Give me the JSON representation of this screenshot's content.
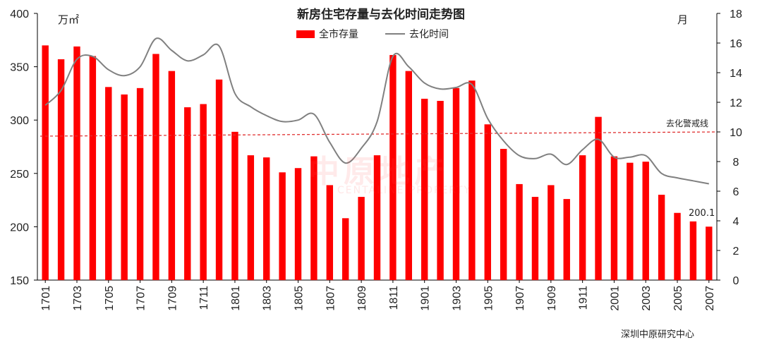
{
  "chart_data": {
    "type": "bar+line",
    "title": "新房住宅存量与去化时间走势图",
    "y_left_unit": "万㎡",
    "y_right_unit": "月",
    "ylim_left": [
      150,
      400
    ],
    "yticks_left": [
      "400",
      "350",
      "300",
      "250",
      "200",
      "150"
    ],
    "ylim_right": [
      0,
      18
    ],
    "yticks_right": [
      "18",
      "16",
      "14",
      "12",
      "10",
      "8",
      "6",
      "4",
      "2",
      "0"
    ],
    "categories": [
      "1701",
      "1702",
      "1703",
      "1704",
      "1705",
      "1706",
      "1707",
      "1708",
      "1709",
      "1710",
      "1711",
      "1712",
      "1801",
      "1802",
      "1803",
      "1804",
      "1805",
      "1806",
      "1807",
      "1808",
      "1809",
      "1810",
      "1811",
      "1812",
      "1901",
      "1902",
      "1903",
      "1904",
      "1905",
      "1906",
      "1907",
      "1908",
      "1909",
      "1910",
      "1911",
      "1912",
      "2001",
      "2002",
      "2003",
      "2004",
      "2005",
      "2006",
      "2007"
    ],
    "xtick_labels": [
      "1701",
      "1703",
      "1705",
      "1707",
      "1709",
      "1711",
      "1801",
      "1803",
      "1805",
      "1807",
      "1809",
      "1811",
      "1901",
      "1903",
      "1905",
      "1907",
      "1909",
      "1911",
      "2001",
      "2003",
      "2005",
      "2007"
    ],
    "series": [
      {
        "name": "全市存量",
        "type": "bar",
        "axis": "left",
        "color": "#ff0000",
        "values": [
          370,
          357,
          369,
          360,
          331,
          324,
          330,
          362,
          346,
          312,
          315,
          338,
          289,
          267,
          265,
          251,
          255,
          266,
          239,
          208,
          228,
          267,
          361,
          346,
          320,
          318,
          330,
          337,
          296,
          273,
          240,
          228,
          239,
          226,
          267,
          303,
          266,
          260,
          261,
          230,
          213,
          205,
          200.1
        ]
      },
      {
        "name": "去化时间",
        "type": "line",
        "axis": "right",
        "color": "#808080",
        "values": [
          11.8,
          12.8,
          14.9,
          15.1,
          14.2,
          13.8,
          14.4,
          16.3,
          15.5,
          14.8,
          15.2,
          15.8,
          12.6,
          11.7,
          11.1,
          10.7,
          10.8,
          11.2,
          9.3,
          7.9,
          8.9,
          10.7,
          15.1,
          14.4,
          13.3,
          12.9,
          13.0,
          13.2,
          10.9,
          9.4,
          8.4,
          8.2,
          8.5,
          7.8,
          8.8,
          9.5,
          8.3,
          8.3,
          8.4,
          7.2,
          6.9,
          6.7,
          6.5
        ]
      }
    ],
    "warning_line": {
      "label": "去化警戒线",
      "value": 10,
      "axis": "right",
      "color": "#e03030"
    },
    "last_value_label": "200.1",
    "legend_position": "top-center",
    "source": "深圳中原研究中心",
    "watermark": {
      "main": "中原地产",
      "sub": "CENTALINE PROPERTY"
    }
  }
}
